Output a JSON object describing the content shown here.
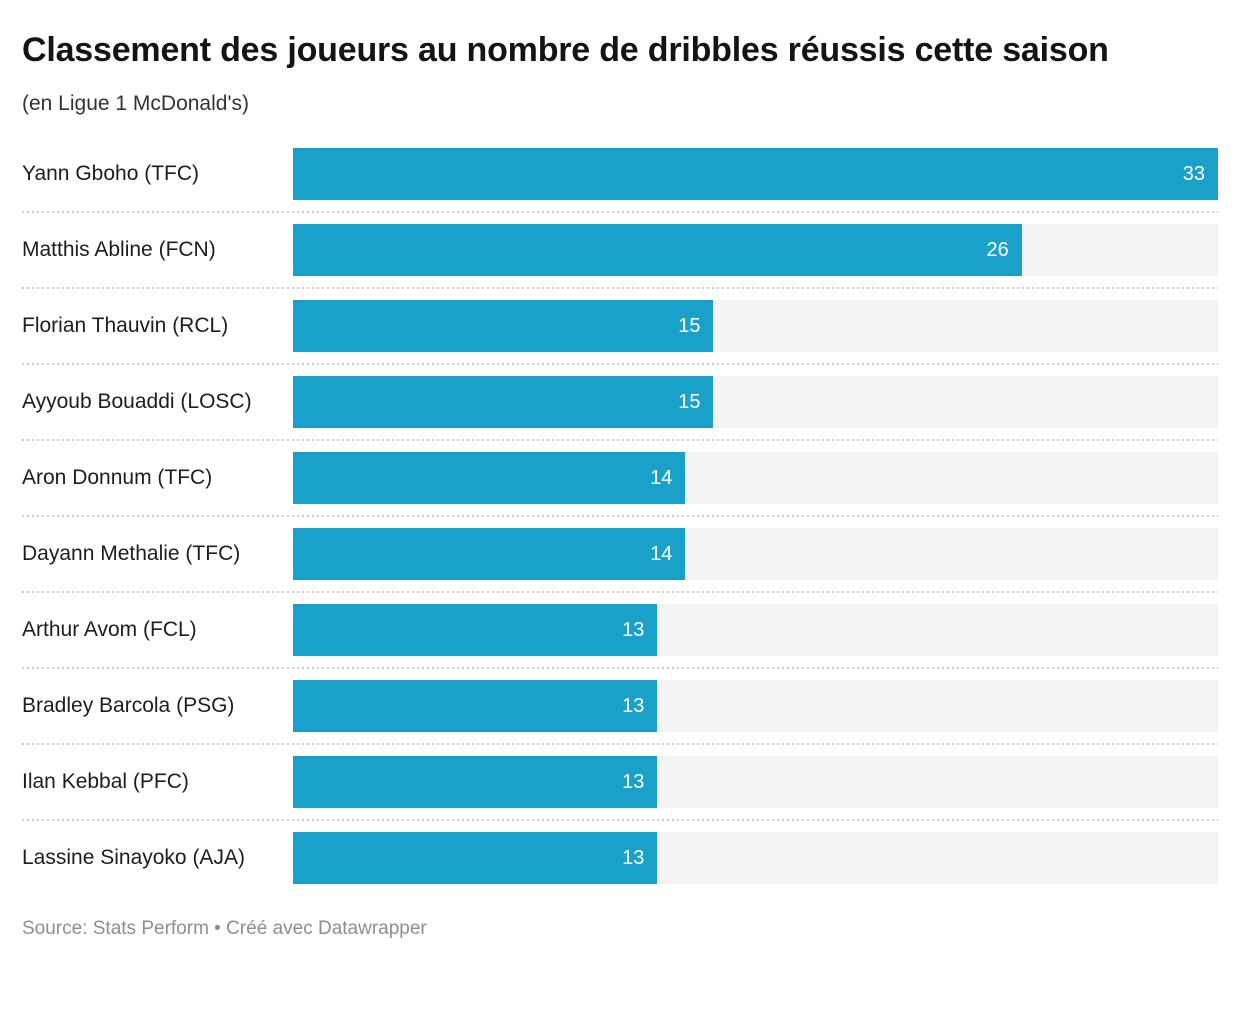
{
  "chart_data": {
    "type": "bar",
    "orientation": "horizontal",
    "title": "Classement des joueurs au nombre de dribbles réussis cette saison",
    "subtitle": "(en Ligue 1 McDonald's)",
    "categories": [
      "Yann Gboho (TFC)",
      "Matthis Abline (FCN)",
      "Florian Thauvin (RCL)",
      "Ayyoub Bouaddi (LOSC)",
      "Aron Donnum (TFC)",
      "Dayann Methalie (TFC)",
      "Arthur Avom (FCL)",
      "Bradley Barcola (PSG)",
      "Ilan Kebbal (PFC)",
      "Lassine Sinayoko (AJA)"
    ],
    "values": [
      33,
      26,
      15,
      15,
      14,
      14,
      13,
      13,
      13,
      13
    ],
    "xlim": [
      0,
      33
    ],
    "value_labels": "inside-end",
    "grid": false,
    "legend": "none",
    "bar_color": "#1aa1c9",
    "track_color": "#f3f3f3",
    "value_label_color": "#ffffff",
    "separator_color": "#cccccc"
  },
  "footer": {
    "text": "Source: Stats Perform • Créé avec Datawrapper"
  }
}
